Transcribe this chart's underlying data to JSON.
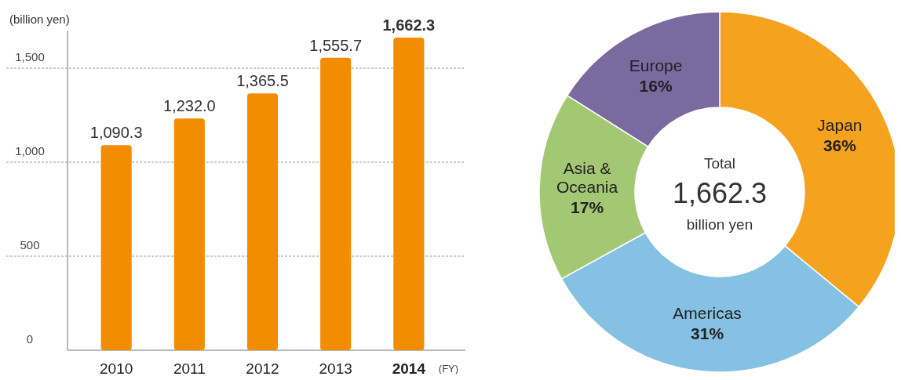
{
  "chart_data": [
    {
      "type": "bar",
      "ylabel": "(billion yen)",
      "xlabel": "(FY)",
      "categories": [
        "2010",
        "2011",
        "2012",
        "2013",
        "2014"
      ],
      "values": [
        1090.3,
        1232.0,
        1365.5,
        1555.7,
        1662.3
      ],
      "value_labels": [
        "1,090.3",
        "1,232.0",
        "1,365.5",
        "1,555.7",
        "1,662.3"
      ],
      "color": "#f28c00",
      "ylim": [
        0,
        1700
      ],
      "yticks": [
        0,
        {
          "value": 500,
          "label": "500"
        },
        {
          "value": 1000,
          "label": "1,000"
        },
        {
          "value": 1500,
          "label": "1,500"
        }
      ],
      "grid": "y"
    },
    {
      "type": "donut",
      "categories": [
        "Japan",
        "Americas",
        "Asia & Oceania",
        "Europe"
      ],
      "values": [
        36,
        31,
        17,
        16
      ],
      "value_labels": [
        "36%",
        "31%",
        "17%",
        "16%"
      ],
      "colors": [
        "#f5a21f",
        "#85c1e3",
        "#a3c873",
        "#7b6aa0"
      ],
      "annotations": [
        "Total",
        "1,662.3",
        "billion yen"
      ]
    }
  ]
}
